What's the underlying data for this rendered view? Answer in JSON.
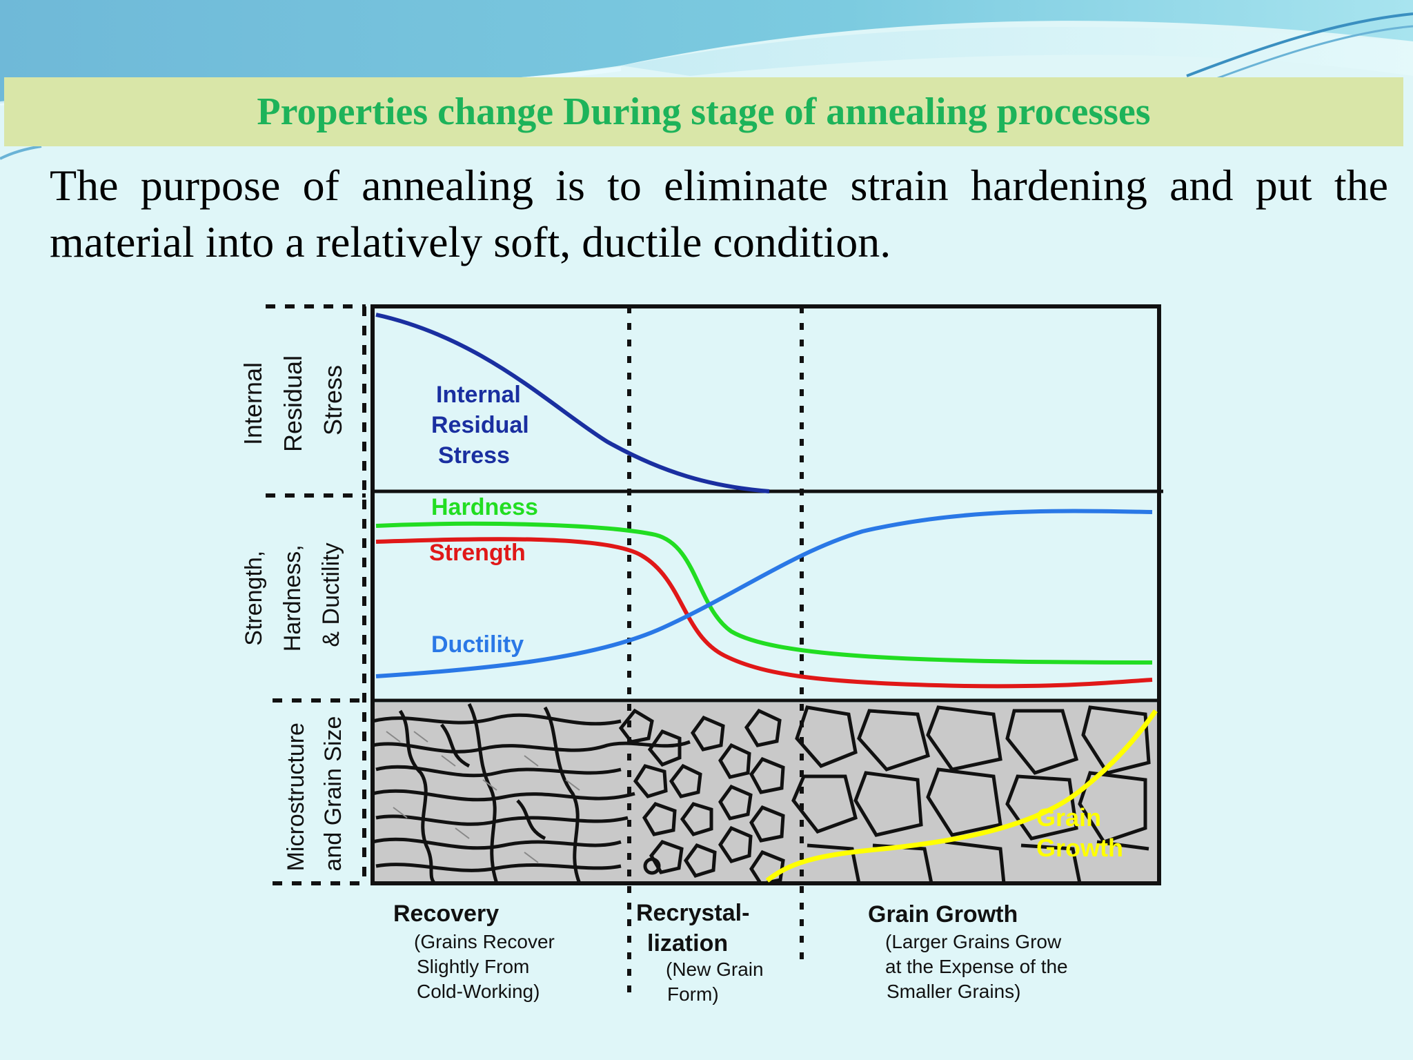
{
  "slide": {
    "title": "Properties change During stage of annealing processes",
    "body": "The purpose of annealing is to eliminate strain hardening and put the material into a relatively soft, ductile condition."
  },
  "figure": {
    "panels": {
      "stress": {
        "axis_label": [
          "Internal",
          "Residual",
          "Stress"
        ]
      },
      "properties": {
        "axis_label": [
          "Strength,",
          "Hardness,",
          "& Ductility"
        ]
      },
      "micro": {
        "axis_label": [
          "Microstructure",
          "and Grain Size"
        ]
      }
    },
    "curves": {
      "stress": {
        "label": [
          "Internal",
          "Residual",
          "Stress"
        ],
        "color": "#1a2fa0"
      },
      "hardness": {
        "label": "Hardness",
        "color": "#22dd22"
      },
      "strength": {
        "label": "Strength",
        "color": "#e01818"
      },
      "ductility": {
        "label": "Ductility",
        "color": "#2a78e6"
      },
      "grain": {
        "label": [
          "Grain",
          "Growth"
        ],
        "color": "#ffff00"
      }
    },
    "stages": {
      "recovery": {
        "title": "Recovery",
        "desc": [
          "(Grains Recover",
          "Slightly From",
          "Cold-Working)"
        ]
      },
      "recrystallization": {
        "title": [
          "Recrystal-",
          "lization"
        ],
        "desc": [
          "(New Grain",
          "Form)"
        ]
      },
      "grain_growth": {
        "title": "Grain Growth",
        "desc": [
          "(Larger Grains Grow",
          "at the Expense of the",
          "Smaller Grains)"
        ]
      }
    },
    "colors": {
      "frame": "#111111",
      "grain_fill": "#c9c9c9",
      "grain_boundary": "#111111"
    }
  }
}
